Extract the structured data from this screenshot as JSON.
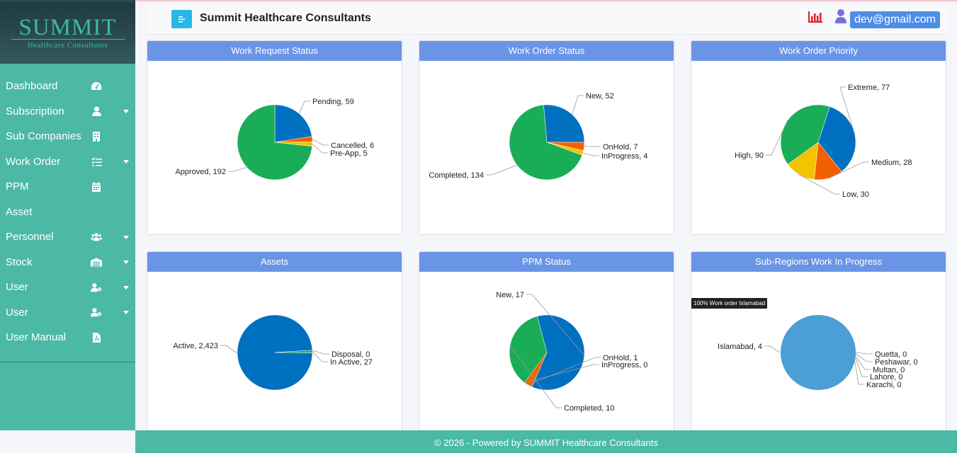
{
  "logo": {
    "main": "SUMMIT",
    "sub": "Healthcare Consultants"
  },
  "header": {
    "title": "Summit Healthcare Consultants",
    "email": "dev@gmail.com"
  },
  "sidebar": {
    "items": [
      {
        "label": "Dashboard",
        "icon": "dashboard-icon",
        "caret": false
      },
      {
        "label": "Subscription",
        "icon": "user-icon",
        "caret": true
      },
      {
        "label": "Sub Companies",
        "icon": "building-icon",
        "caret": false
      },
      {
        "label": "Work Order",
        "icon": "task-list-icon",
        "caret": true
      },
      {
        "label": "PPM",
        "icon": "calendar-icon",
        "caret": false
      },
      {
        "label": "Asset",
        "icon": "",
        "caret": false
      },
      {
        "label": "Personnel",
        "icon": "users-icon",
        "caret": true
      },
      {
        "label": "Stock",
        "icon": "warehouse-icon",
        "caret": true
      },
      {
        "label": "User",
        "icon": "user-cog-icon",
        "caret": true
      },
      {
        "label": "User",
        "icon": "user-cog-icon",
        "caret": true
      },
      {
        "label": "User Manual",
        "icon": "pdf-file-icon",
        "caret": false
      }
    ]
  },
  "cards": [
    {
      "title": "Work Request Status"
    },
    {
      "title": "Work Order Status"
    },
    {
      "title": "Work Order Priority"
    },
    {
      "title": "Assets"
    },
    {
      "title": "PPM Status"
    },
    {
      "title": "Sub-Regions Work In Progress",
      "tooltip": "100% Work order Islamabad"
    }
  ],
  "chart_data": [
    {
      "type": "pie",
      "title": "Work Request Status",
      "labels": [
        "Pending",
        "Cancelled",
        "Pre-App",
        "Approved"
      ],
      "values": [
        59,
        6,
        5,
        192
      ],
      "colors": [
        "#0070c0",
        "#f26000",
        "#f3c300",
        "#1aad57"
      ]
    },
    {
      "type": "pie",
      "title": "Work Order Status",
      "labels": [
        "New",
        "OnHold",
        "InProgress",
        "Completed"
      ],
      "values": [
        52,
        7,
        4,
        134
      ],
      "colors": [
        "#0070c0",
        "#f26000",
        "#f3c300",
        "#1aad57"
      ]
    },
    {
      "type": "pie",
      "title": "Work Order Priority",
      "labels": [
        "Extreme",
        "Medium",
        "Low",
        "High"
      ],
      "values": [
        77,
        28,
        30,
        90
      ],
      "colors": [
        "#0070c0",
        "#f26000",
        "#f3c300",
        "#1aad57"
      ]
    },
    {
      "type": "pie",
      "title": "Assets",
      "labels": [
        "Active",
        "Disposal",
        "In Active"
      ],
      "values": [
        2423,
        0,
        27
      ],
      "colors": [
        "#0070c0",
        "#f26000",
        "#1aad57"
      ]
    },
    {
      "type": "pie",
      "title": "PPM Status",
      "labels": [
        "New",
        "OnHold",
        "InProgress",
        "Completed"
      ],
      "values": [
        17,
        1,
        0,
        10
      ],
      "colors": [
        "#0070c0",
        "#f26000",
        "#f3c300",
        "#1aad57"
      ]
    },
    {
      "type": "pie",
      "title": "Sub-Regions Work In Progress",
      "labels": [
        "Islamabad",
        "Quetta",
        "Peshawar",
        "Multan",
        "Lahore",
        "Karachi"
      ],
      "values": [
        4,
        0,
        0,
        0,
        0,
        0
      ],
      "colors": [
        "#4b9fd6",
        "#0070c0",
        "#1aad57",
        "#f26000",
        "#f3c300",
        "#7a4fd0"
      ]
    }
  ],
  "footer": {
    "text": "© 2026 - Powered by SUMMIT Healthcare Consultants"
  }
}
